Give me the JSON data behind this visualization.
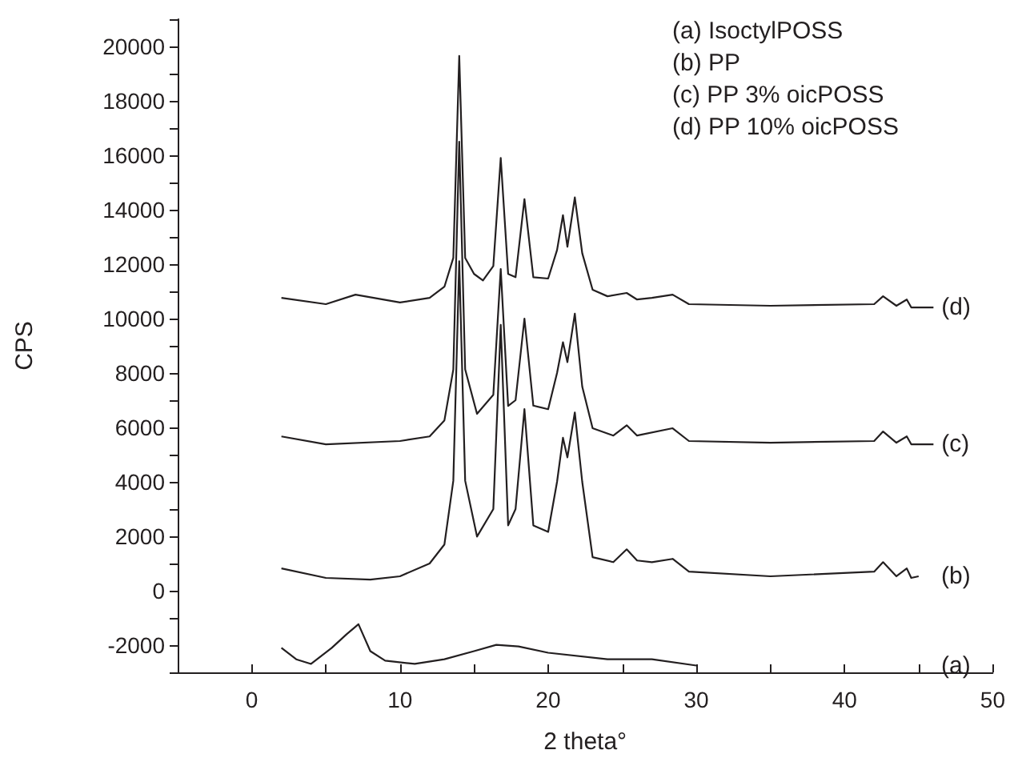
{
  "chart_data": {
    "type": "line",
    "xlabel": "2 theta°",
    "ylabel": "CPS",
    "xlim": [
      -5,
      50
    ],
    "xticks": [
      {
        "value": -5,
        "label": null
      },
      0,
      {
        "value": 5,
        "label": null
      },
      10,
      {
        "value": 15,
        "label": null
      },
      20,
      {
        "value": 25,
        "label": null
      },
      30,
      {
        "value": 35,
        "label": null
      },
      40,
      {
        "value": 45,
        "label": null
      },
      50
    ],
    "ylim": [
      -3000,
      21000
    ],
    "yticks": [
      {
        "value": -3000,
        "label": null
      },
      -2000,
      {
        "value": -1000,
        "label": null
      },
      0,
      {
        "value": 1000,
        "label": null
      },
      2000,
      {
        "value": 3000,
        "label": null
      },
      4000,
      {
        "value": 5000,
        "label": null
      },
      6000,
      {
        "value": 7000,
        "label": null
      },
      8000,
      {
        "value": 9000,
        "label": null
      },
      10000,
      {
        "value": 11000,
        "label": null
      },
      12000,
      {
        "value": 13000,
        "label": null
      },
      14000,
      {
        "value": 15000,
        "label": null
      },
      16000,
      {
        "value": 17000,
        "label": null
      },
      18000,
      {
        "value": 19000,
        "label": null
      },
      20000,
      {
        "value": 21000,
        "label": null
      }
    ],
    "marker": "none",
    "line_style": "solid",
    "series": [
      {
        "name": "(a)",
        "color": "#231f20",
        "x": [
          2,
          3,
          4,
          5.4,
          6.4,
          7.2,
          8,
          9,
          11,
          13,
          15,
          16.5,
          18,
          20,
          24,
          27,
          30
        ],
        "values": [
          -2100,
          -2520,
          -2690,
          -2100,
          -1600,
          -1230,
          -2220,
          -2570,
          -2690,
          -2520,
          -2220,
          -1990,
          -2050,
          -2280,
          -2520,
          -2520,
          -2750
        ]
      },
      {
        "name": "(b)",
        "color": "#231f20",
        "x": [
          2,
          5,
          8,
          10,
          12,
          13,
          13.6,
          14,
          14.4,
          15.2,
          16.3,
          16.8,
          17.3,
          17.8,
          18.4,
          19,
          20,
          20.6,
          21,
          21.3,
          21.8,
          22.3,
          23,
          24.4,
          25.3,
          26,
          27,
          28.4,
          29.5,
          35,
          42,
          42.6,
          43.5,
          44.2,
          44.5,
          45
        ],
        "values": [
          820,
          470,
          410,
          530,
          1000,
          1700,
          4040,
          12110,
          4040,
          1990,
          3000,
          9770,
          2400,
          3000,
          6670,
          2400,
          2160,
          4000,
          5620,
          4900,
          6550,
          4000,
          1230,
          1050,
          1520,
          1110,
          1050,
          1170,
          700,
          530,
          700,
          1050,
          530,
          820,
          470,
          530
        ]
      },
      {
        "name": "(c)",
        "color": "#231f20",
        "x": [
          2,
          5,
          10,
          12,
          13,
          13.6,
          14,
          14.4,
          15.2,
          16.3,
          16.8,
          17.3,
          17.8,
          18.4,
          19,
          20,
          20.6,
          21,
          21.3,
          21.8,
          22.3,
          23,
          24.4,
          25.3,
          26,
          28.4,
          29.5,
          35,
          42,
          42.6,
          43.5,
          44.2,
          44.5,
          46
        ],
        "values": [
          5670,
          5380,
          5500,
          5670,
          6260,
          8130,
          16500,
          8130,
          6500,
          7200,
          11820,
          6790,
          7000,
          10000,
          6800,
          6670,
          8000,
          9130,
          8400,
          10180,
          7500,
          5970,
          5700,
          6080,
          5700,
          5970,
          5500,
          5440,
          5500,
          5850,
          5440,
          5670,
          5380,
          5380
        ]
      },
      {
        "name": "(d)",
        "color": "#231f20",
        "x": [
          2,
          5,
          7,
          10,
          12,
          13,
          13.6,
          14,
          14.4,
          15,
          15.6,
          16.3,
          16.8,
          17.3,
          17.8,
          18.4,
          19,
          20,
          20.6,
          21,
          21.3,
          21.8,
          22.3,
          23,
          24,
          25.3,
          26,
          27,
          28.4,
          29.5,
          35,
          42,
          42.6,
          43.5,
          44.2,
          44.5,
          46
        ],
        "values": [
          10760,
          10530,
          10880,
          10590,
          10760,
          11170,
          12230,
          19650,
          12230,
          11640,
          11400,
          11930,
          15900,
          11640,
          11520,
          14390,
          11520,
          11470,
          12520,
          13800,
          12640,
          14450,
          12400,
          11060,
          10820,
          10940,
          10700,
          10760,
          10880,
          10530,
          10470,
          10530,
          10820,
          10470,
          10700,
          10410,
          10410
        ]
      }
    ],
    "annotations": [
      "(a) IsoctylPOSS",
      "(b) PP",
      "(c) PP 3% oicPOSS",
      "(d) PP 10% oicPOSS"
    ]
  }
}
